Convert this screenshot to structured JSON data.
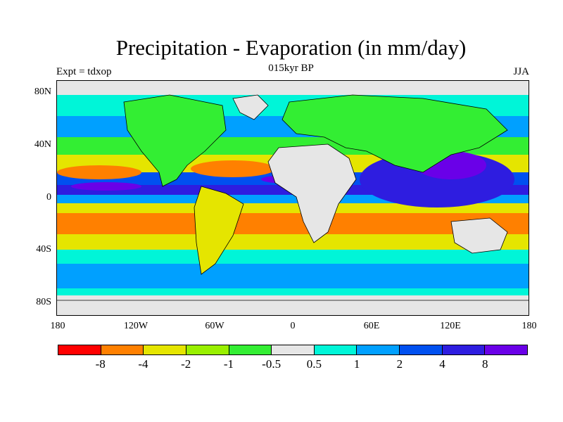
{
  "title": "Precipitation - Evaporation (in mm/day)",
  "subtitle": "015kyr BP",
  "left_label": "Expt = tdxop",
  "right_label": "JJA",
  "y_ticks": [
    "80N",
    "40N",
    "0",
    "40S",
    "80S"
  ],
  "x_ticks": [
    "180",
    "120W",
    "60W",
    "0",
    "60E",
    "120E",
    "180"
  ],
  "colorbar": {
    "colors": [
      "#ff0000",
      "#ff8000",
      "#e5e500",
      "#99f000",
      "#33ee33",
      "#e6e6e6",
      "#00f5d8",
      "#00a0ff",
      "#0050f0",
      "#2e1de0",
      "#6a00e8"
    ],
    "labels": [
      "-8",
      "-4",
      "-2",
      "-1",
      "-0.5",
      "0.5",
      "1",
      "2",
      "4",
      "8"
    ]
  }
}
